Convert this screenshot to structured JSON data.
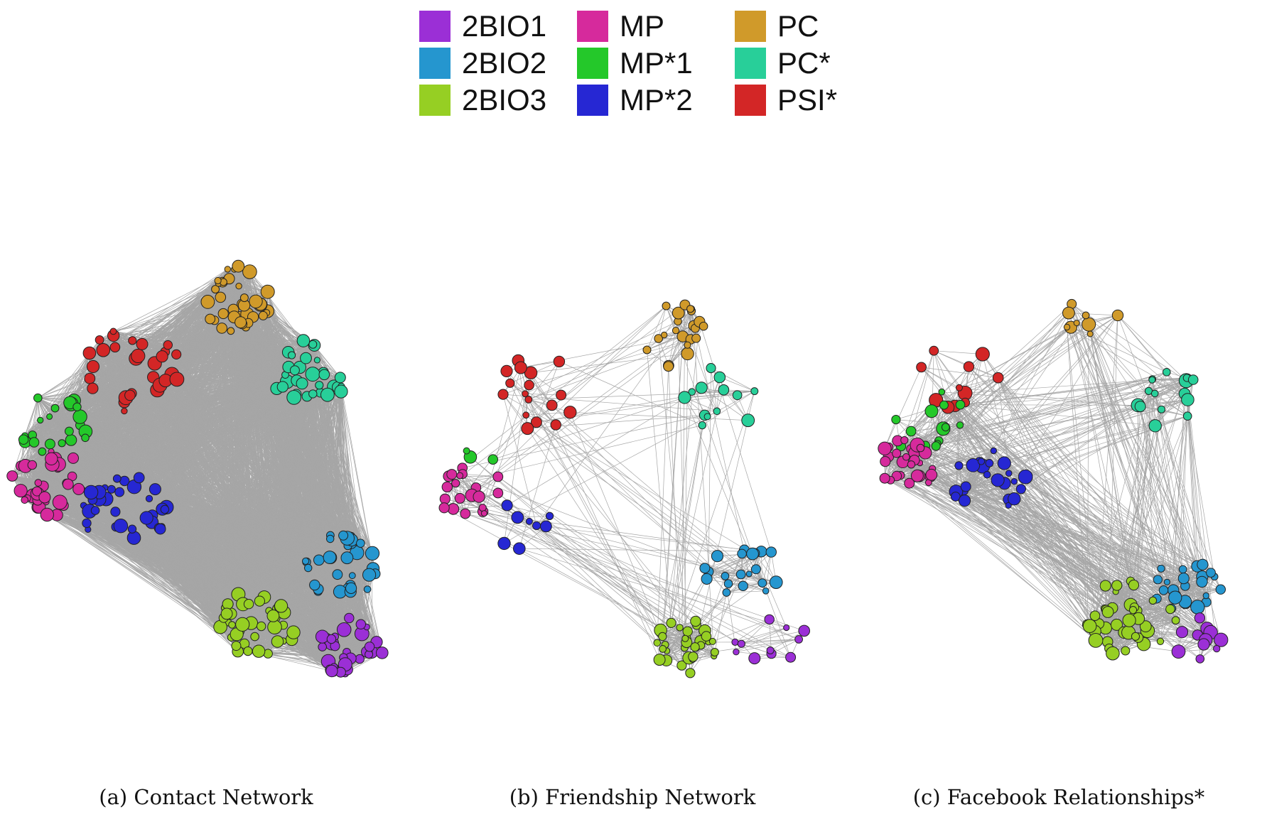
{
  "legend": [
    {
      "label": "2BIO1",
      "color": "#9b2fd6"
    },
    {
      "label": "MP",
      "color": "#d62a9c"
    },
    {
      "label": "PC",
      "color": "#d09a2a"
    },
    {
      "label": "2BIO2",
      "color": "#2596cf"
    },
    {
      "label": "MP*1",
      "color": "#24c82a"
    },
    {
      "label": "PC*",
      "color": "#28cf99"
    },
    {
      "label": "2BIO3",
      "color": "#96cf23"
    },
    {
      "label": "MP*2",
      "color": "#2627d3"
    },
    {
      "label": "PSI*",
      "color": "#d32626"
    }
  ],
  "panels": [
    {
      "caption": "(a) Contact Network",
      "density": "dense"
    },
    {
      "caption": "(b) Friendship Network",
      "density": "sparse"
    },
    {
      "caption": "(c) Facebook Relationships*",
      "density": "medium"
    }
  ],
  "edge_color": "#a6a6a6",
  "node_outline_color": "#222222"
}
